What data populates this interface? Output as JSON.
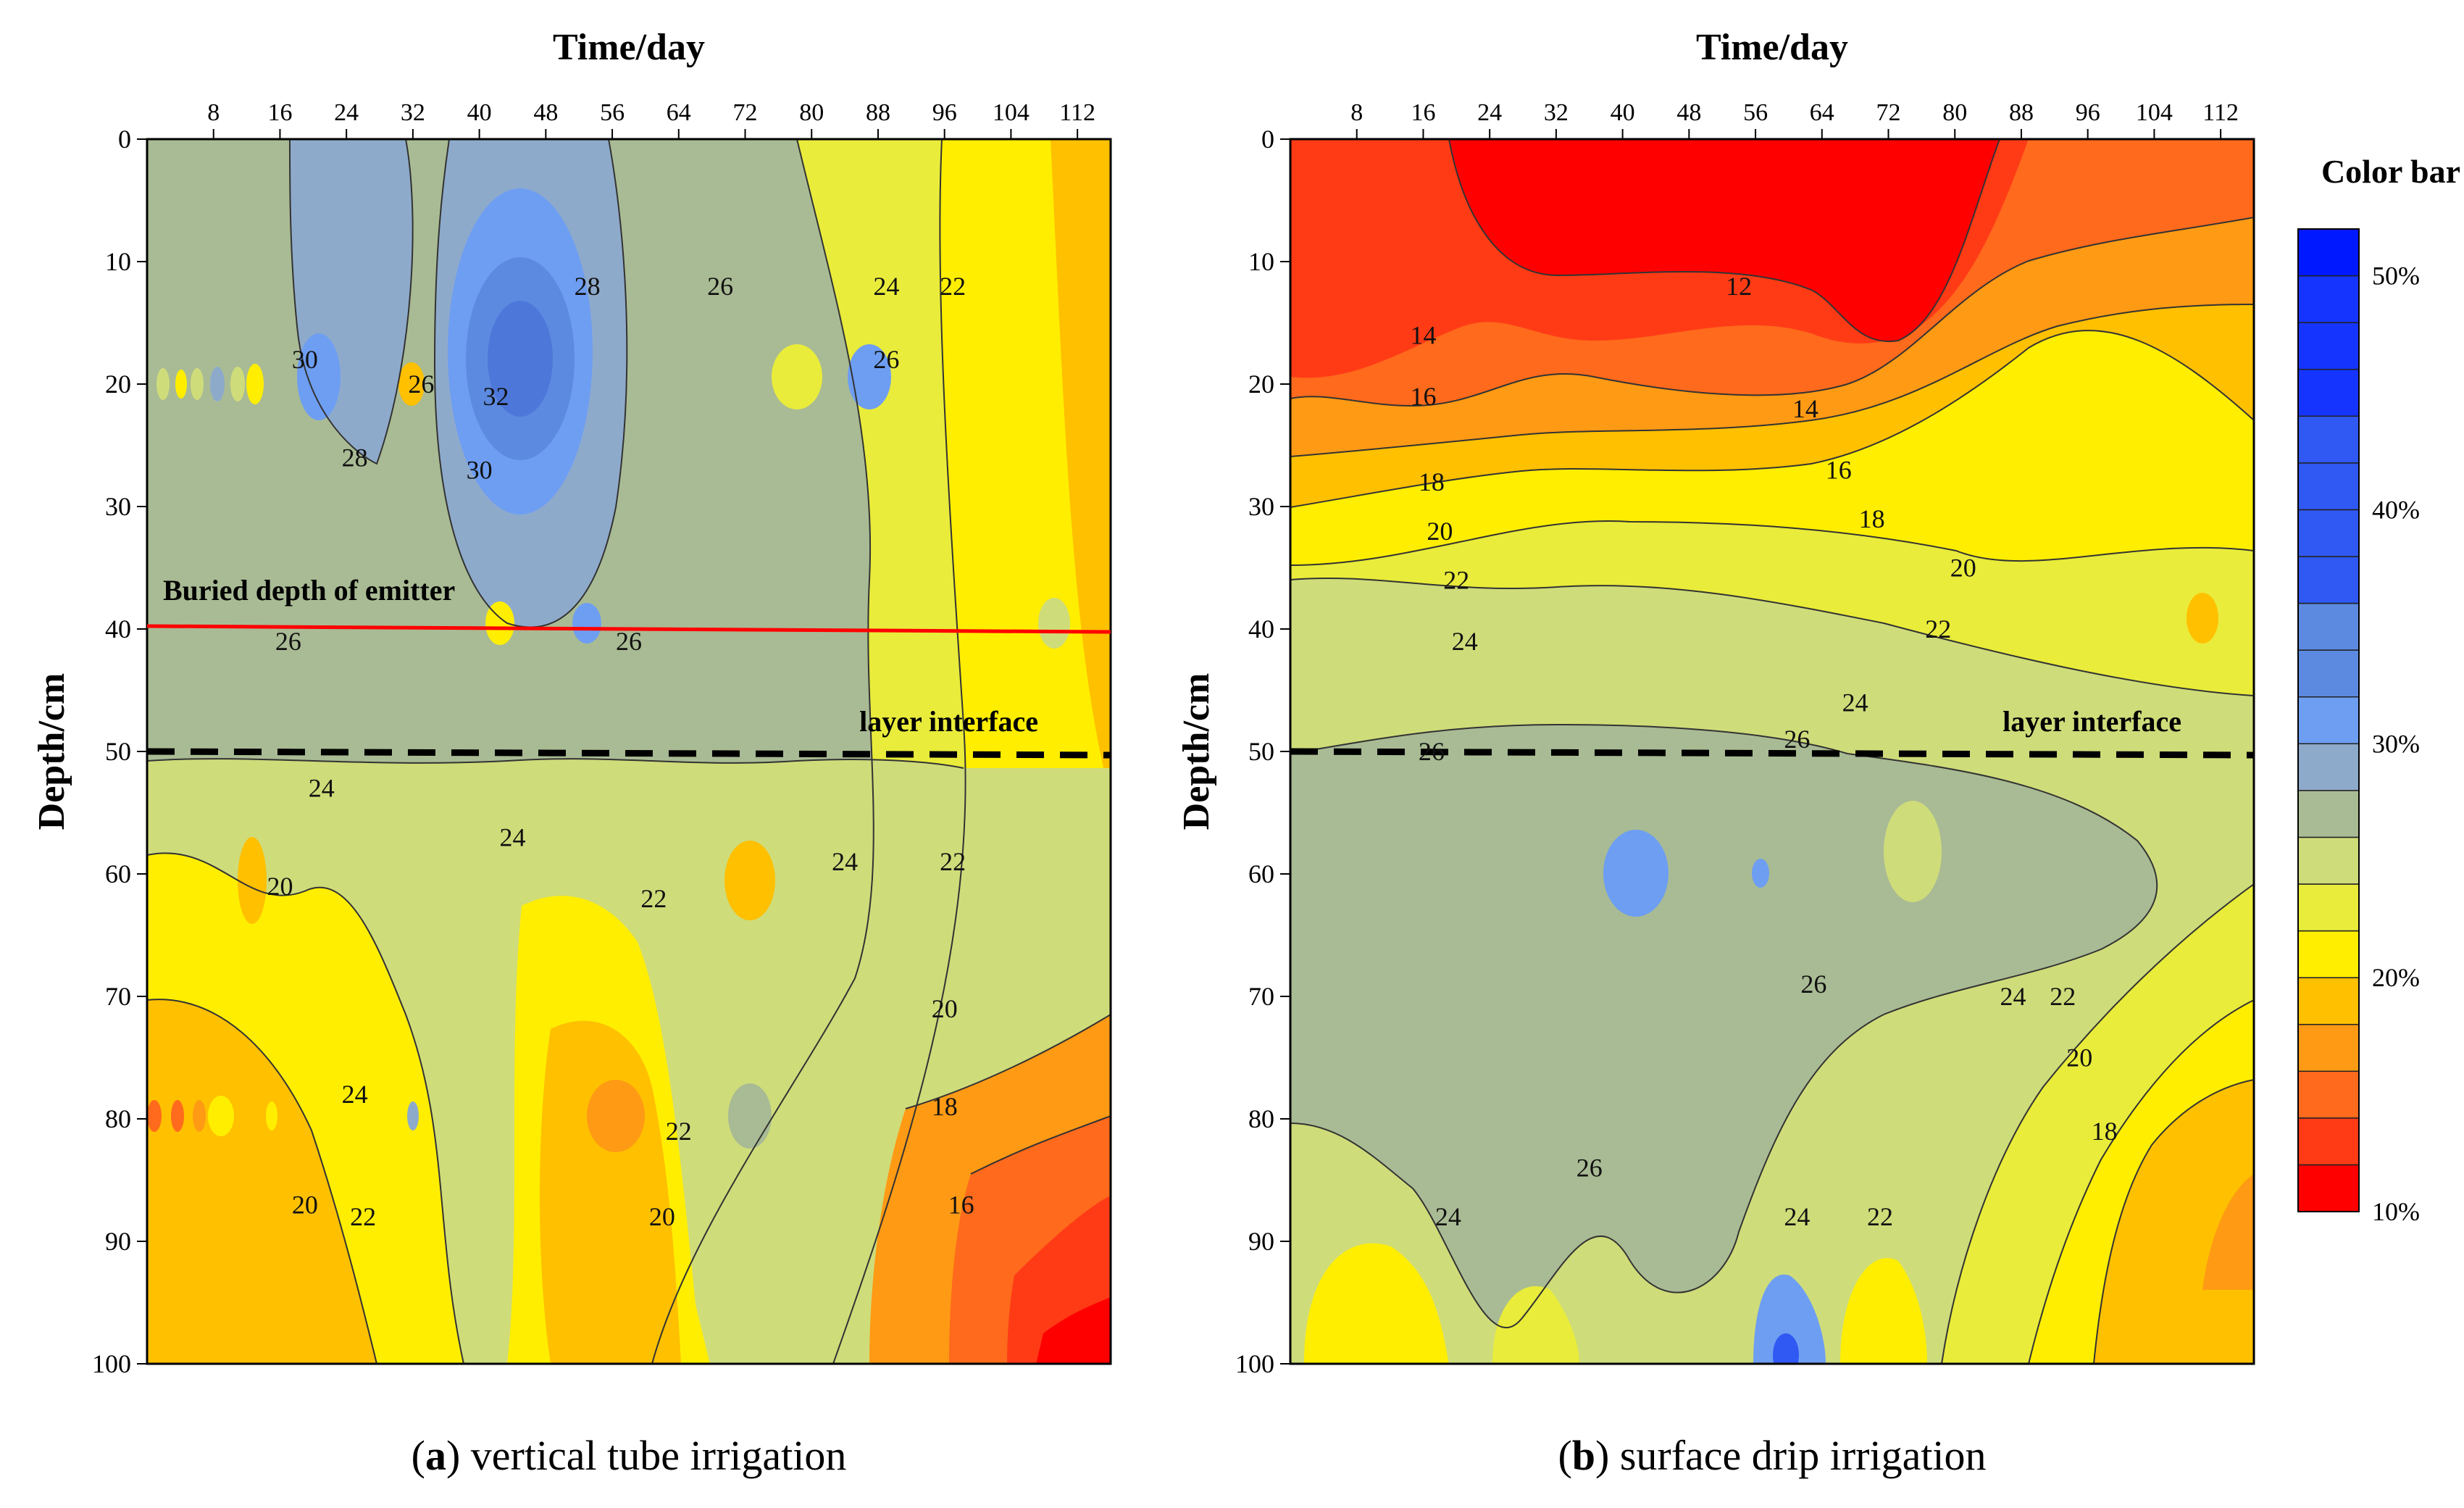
{
  "chart_data": [
    {
      "type": "contour",
      "panel": "a",
      "title": "Time/day",
      "xlabel": "Time/day",
      "ylabel": "Depth/cm",
      "x_ticks": [
        "8",
        "16",
        "24",
        "32",
        "40",
        "48",
        "56",
        "64",
        "72",
        "80",
        "88",
        "96",
        "104",
        "112"
      ],
      "y_ticks": [
        "0",
        "10",
        "20",
        "30",
        "40",
        "50",
        "60",
        "70",
        "80",
        "90",
        "100"
      ],
      "xlim": [
        0,
        116
      ],
      "ylim": [
        0,
        100
      ],
      "caption_letter": "a",
      "caption_text": " vertical tube irrigation",
      "lines": [
        {
          "label": "Buried depth of emitter",
          "depth": 40,
          "style": "solid-red"
        },
        {
          "label": "layer interface",
          "depth": 50,
          "style": "dashed-black"
        }
      ],
      "contour_labels": [
        {
          "text": "30",
          "x": 19,
          "y": 18
        },
        {
          "text": "28",
          "x": 25,
          "y": 26
        },
        {
          "text": "26",
          "x": 33,
          "y": 20
        },
        {
          "text": "32",
          "x": 42,
          "y": 21
        },
        {
          "text": "30",
          "x": 40,
          "y": 27
        },
        {
          "text": "28",
          "x": 53,
          "y": 12
        },
        {
          "text": "26",
          "x": 69,
          "y": 12
        },
        {
          "text": "24",
          "x": 89,
          "y": 12
        },
        {
          "text": "22",
          "x": 97,
          "y": 12
        },
        {
          "text": "26",
          "x": 89,
          "y": 18
        },
        {
          "text": "26",
          "x": 17,
          "y": 41
        },
        {
          "text": "26",
          "x": 58,
          "y": 41
        },
        {
          "text": "24",
          "x": 21,
          "y": 53
        },
        {
          "text": "24",
          "x": 44,
          "y": 57
        },
        {
          "text": "20",
          "x": 16,
          "y": 61
        },
        {
          "text": "22",
          "x": 61,
          "y": 62
        },
        {
          "text": "24",
          "x": 84,
          "y": 59
        },
        {
          "text": "22",
          "x": 97,
          "y": 59
        },
        {
          "text": "20",
          "x": 96,
          "y": 71
        },
        {
          "text": "24",
          "x": 25,
          "y": 78
        },
        {
          "text": "18",
          "x": 96,
          "y": 79
        },
        {
          "text": "22",
          "x": 64,
          "y": 81
        },
        {
          "text": "20",
          "x": 19,
          "y": 87
        },
        {
          "text": "22",
          "x": 26,
          "y": 88
        },
        {
          "text": "20",
          "x": 62,
          "y": 88
        },
        {
          "text": "16",
          "x": 98,
          "y": 87
        }
      ]
    },
    {
      "type": "contour",
      "panel": "b",
      "title": "Time/day",
      "xlabel": "Time/day",
      "ylabel": "Depth/cm",
      "x_ticks": [
        "8",
        "16",
        "24",
        "32",
        "40",
        "48",
        "56",
        "64",
        "72",
        "80",
        "88",
        "96",
        "104",
        "112"
      ],
      "y_ticks": [
        "0",
        "10",
        "20",
        "30",
        "40",
        "50",
        "60",
        "70",
        "80",
        "90",
        "100"
      ],
      "xlim": [
        0,
        116
      ],
      "ylim": [
        0,
        100
      ],
      "caption_letter": "b",
      "caption_text": " surface drip irrigation",
      "lines": [
        {
          "label": "layer interface",
          "depth": 50,
          "style": "dashed-black"
        }
      ],
      "contour_labels": [
        {
          "text": "12",
          "x": 54,
          "y": 12
        },
        {
          "text": "14",
          "x": 16,
          "y": 16
        },
        {
          "text": "16",
          "x": 16,
          "y": 21
        },
        {
          "text": "14",
          "x": 62,
          "y": 22
        },
        {
          "text": "16",
          "x": 66,
          "y": 27
        },
        {
          "text": "18",
          "x": 17,
          "y": 28
        },
        {
          "text": "18",
          "x": 70,
          "y": 31
        },
        {
          "text": "20",
          "x": 18,
          "y": 32
        },
        {
          "text": "20",
          "x": 81,
          "y": 35
        },
        {
          "text": "22",
          "x": 20,
          "y": 36
        },
        {
          "text": "22",
          "x": 78,
          "y": 40
        },
        {
          "text": "24",
          "x": 21,
          "y": 41
        },
        {
          "text": "24",
          "x": 68,
          "y": 46
        },
        {
          "text": "26",
          "x": 17,
          "y": 50
        },
        {
          "text": "26",
          "x": 61,
          "y": 49
        },
        {
          "text": "26",
          "x": 63,
          "y": 69
        },
        {
          "text": "24",
          "x": 87,
          "y": 70
        },
        {
          "text": "22",
          "x": 93,
          "y": 70
        },
        {
          "text": "20",
          "x": 95,
          "y": 75
        },
        {
          "text": "18",
          "x": 98,
          "y": 81
        },
        {
          "text": "26",
          "x": 36,
          "y": 84
        },
        {
          "text": "24",
          "x": 19,
          "y": 88
        },
        {
          "text": "24",
          "x": 61,
          "y": 88
        },
        {
          "text": "22",
          "x": 71,
          "y": 88
        }
      ]
    }
  ],
  "colorbar": {
    "title": "Color bar",
    "tick_labels": [
      "50%",
      "40%",
      "30%",
      "20%",
      "10%"
    ],
    "tick_values": [
      50,
      40,
      30,
      20,
      10
    ],
    "range": [
      10,
      52
    ],
    "levels": [
      10,
      12,
      14,
      16,
      18,
      20,
      22,
      24,
      26,
      28,
      30,
      32,
      34,
      36,
      38,
      40,
      42,
      44,
      46,
      48,
      50,
      52
    ]
  },
  "colors": {
    "c10": "#ff0000",
    "c12": "#ff3b16",
    "c14": "#ff6a1c",
    "c16": "#ff9a14",
    "c18": "#ffc000",
    "c20": "#ffee00",
    "c22": "#e9ec3a",
    "c24": "#cfdc7a",
    "c26": "#a9bb94",
    "c28": "#8eaacb",
    "c30": "#6e9ef2",
    "c32": "#5c8ae0",
    "c36": "#3058f2",
    "c44": "#1535ff",
    "c52": "#0018ff",
    "emitter_line": "#ff0000"
  }
}
